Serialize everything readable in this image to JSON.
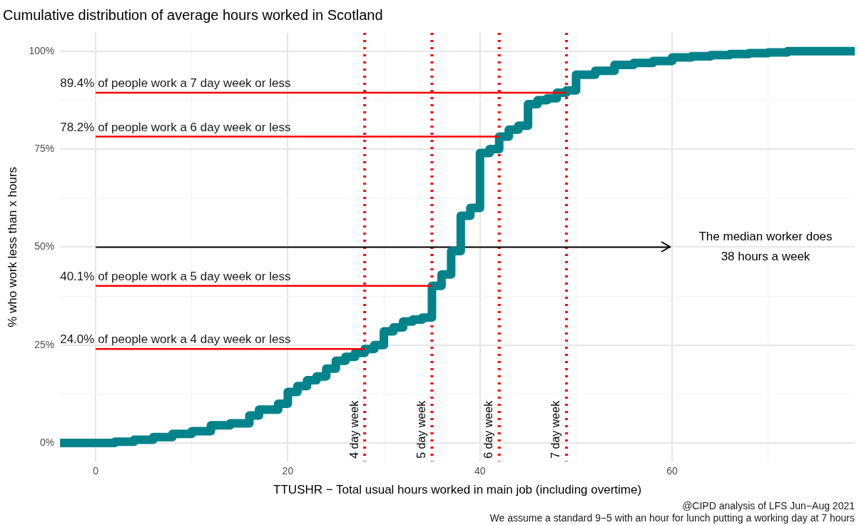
{
  "chart_data": {
    "type": "step",
    "title": "Cumulative distribution of average hours worked in Scotland",
    "xlabel": "TTUSHR − Total usual hours worked in main job (including overtime)",
    "ylabel": "% who work less than x hours",
    "xlim": [
      -3.7,
      79
    ],
    "xticks": [
      0,
      {
        "value": 10,
        "label": null
      },
      20,
      {
        "value": 30,
        "label": null
      },
      40,
      {
        "value": 50,
        "label": null
      },
      60,
      {
        "value": 70,
        "label": null
      }
    ],
    "ylim": [
      -4.7,
      104.7
    ],
    "yticks": [
      {
        "value": 0,
        "label": "0%"
      },
      {
        "value": 12.5,
        "label": null
      },
      {
        "value": 25,
        "label": "25%"
      },
      {
        "value": 37.5,
        "label": null
      },
      {
        "value": 50,
        "label": "50%"
      },
      {
        "value": 62.5,
        "label": null
      },
      {
        "value": 75,
        "label": "75%"
      },
      {
        "value": 87.5,
        "label": null
      },
      {
        "value": 100,
        "label": "100%"
      }
    ],
    "grid": true,
    "legend": false,
    "marker": "none",
    "series": [
      {
        "color": "#00838a",
        "x": [
          -3.7,
          0,
          2,
          4,
          6,
          8,
          10,
          12,
          14,
          16,
          17,
          19,
          20,
          21,
          22,
          23,
          24,
          25,
          26,
          27,
          28,
          29,
          30,
          31,
          32,
          33,
          34,
          35,
          36,
          37,
          38,
          39,
          40,
          41,
          42,
          43,
          44,
          45,
          46,
          47,
          48,
          49,
          50,
          52,
          54,
          56,
          58,
          60,
          62,
          64,
          66,
          68,
          70,
          72,
          79
        ],
        "values": [
          0,
          0,
          0.3,
          0.8,
          1.5,
          2.3,
          3,
          4.5,
          5,
          7,
          8.5,
          10,
          13,
          14.5,
          16,
          17,
          19,
          21,
          22,
          23,
          24,
          25,
          28.5,
          29.5,
          31,
          31.5,
          32,
          40.1,
          43,
          49,
          58,
          60,
          74,
          75,
          78.2,
          80,
          81,
          86.5,
          87.5,
          88,
          89.4,
          90,
          94,
          95,
          96.5,
          97,
          97.5,
          98.4,
          98.7,
          99,
          99.3,
          99.5,
          99.7,
          100,
          100
        ]
      },
      {
        "type": "line",
        "color": "#ff0000",
        "x": [
          0,
          28
        ],
        "values": [
          24,
          24
        ]
      },
      {
        "type": "line",
        "color": "#ff0000",
        "x": [
          0,
          35
        ],
        "values": [
          40.1,
          40.1
        ]
      },
      {
        "type": "line",
        "color": "#ff0000",
        "x": [
          0,
          42
        ],
        "values": [
          78.2,
          78.2
        ]
      },
      {
        "type": "line",
        "color": "#ff0000",
        "x": [
          0,
          49
        ],
        "values": [
          89.4,
          89.4
        ]
      }
    ],
    "ref_lines": [
      {
        "axis": "x",
        "value": 28,
        "label": "4 day week",
        "color": "#ff0000",
        "line_style": "dotted"
      },
      {
        "axis": "x",
        "value": 35,
        "label": "5 day week",
        "color": "#ff0000",
        "line_style": "dotted"
      },
      {
        "axis": "x",
        "value": 42,
        "label": "6 day week",
        "color": "#ff0000",
        "line_style": "dotted"
      },
      {
        "axis": "x",
        "value": 49,
        "label": "7 day week",
        "color": "#ff0000",
        "line_style": "dotted"
      },
      {
        "axis": "y",
        "value": 50,
        "label": "The median worker does 38 hours a week",
        "color": "#000000",
        "line_style": "solid"
      }
    ],
    "annotations": [
      {
        "text": "24.0% of people work a 4 day week or less",
        "y": 24
      },
      {
        "text": "40.1% of people work a 5 day week or less",
        "y": 40.1
      },
      {
        "text": "78.2% of people work a 6 day week or less",
        "y": 78.2
      },
      {
        "text": "89.4% of people work a 7 day week or less",
        "y": 89.4
      },
      "@CIPD analysis of LFS Jun−Aug 2021",
      "We assume a standard 9−5 with an hour for lunch putting a working day at 7 hours"
    ]
  }
}
